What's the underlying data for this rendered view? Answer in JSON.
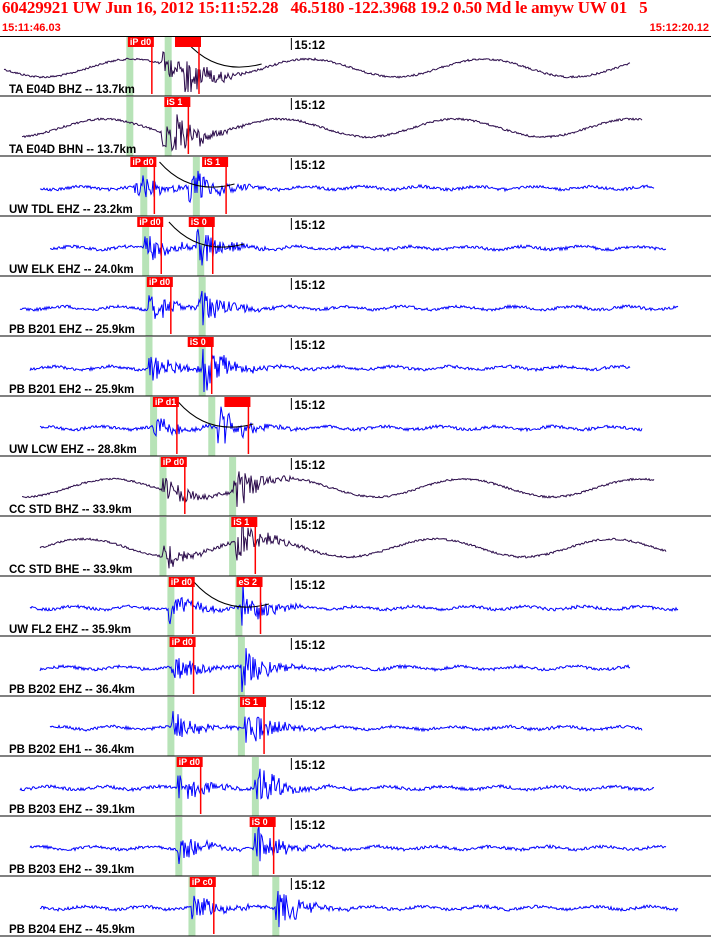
{
  "header": {
    "title": "60429921 UW Jun 16, 2012 15:11:52.28   46.5180 -122.3968 19.2 0.50 Md le amyw UW 01   5",
    "start_time": "15:11:46.03",
    "end_time": "15:12:20.12"
  },
  "minute_label": "15:12",
  "colors": {
    "header": "#ff0000",
    "trace_blue": "#0000ff",
    "trace_dark": "#2a0a4a",
    "pick": "#ff0000",
    "window": "#b7e3b7",
    "curve": "#000000"
  },
  "traces": [
    {
      "label": "TA E04D BHZ -- 13.7km",
      "color": "dark",
      "picks": [
        {
          "text": "iP d0",
          "t": 6.13
        },
        {
          "text": "",
          "t": 8.39
        }
      ],
      "windows": [
        6.2,
        8.04
      ],
      "p_onset": 7.75,
      "s_onset": 8.8,
      "curve": true
    },
    {
      "label": "TA E04D BHN -- 13.7km",
      "color": "dark",
      "picks": [
        {
          "text": "iS 1",
          "t": 7.88
        }
      ],
      "windows": [
        6.2,
        8.04
      ],
      "p_onset": 7.75,
      "s_onset": 8.2,
      "curve": false
    },
    {
      "label": "UW TDL EHZ -- 23.2km",
      "color": "blue",
      "picks": [
        {
          "text": "iP d0",
          "t": 6.25
        },
        {
          "text": "iS 1",
          "t": 9.69
        }
      ],
      "windows": [
        6.87,
        9.39
      ],
      "p_onset": 6.45,
      "s_onset": 9.0,
      "curve": true
    },
    {
      "label": "UW ELK EHZ -- 24.0km",
      "color": "blue",
      "picks": [
        {
          "text": "iP d0",
          "t": 6.58
        },
        {
          "text": "iS 0",
          "t": 9.05
        }
      ],
      "windows": [
        6.96,
        9.6
      ],
      "p_onset": 6.9,
      "s_onset": 9.4,
      "curve": true
    },
    {
      "label": "PB B201 EHZ -- 25.9km",
      "color": "blue",
      "picks": [
        {
          "text": "iP d0",
          "t": 7.04
        }
      ],
      "windows": [
        7.12,
        9.67
      ],
      "p_onset": 7.1,
      "s_onset": 9.5,
      "curve": false
    },
    {
      "label": "PB B201 EH2 -- 25.9km",
      "color": "blue",
      "picks": [
        {
          "text": "iS 0",
          "t": 9.0
        }
      ],
      "windows": [
        7.12,
        9.67
      ],
      "p_onset": 7.1,
      "s_onset": 9.7,
      "curve": false
    },
    {
      "label": "UW LCW EHZ -- 28.8km",
      "color": "blue",
      "picks": [
        {
          "text": "iP d1",
          "t": 7.33
        },
        {
          "text": "",
          "t": 10.76
        }
      ],
      "windows": [
        7.34,
        10.13
      ],
      "p_onset": 7.35,
      "s_onset": 10.4,
      "curve": true
    },
    {
      "label": "CC STD BHZ -- 33.9km",
      "color": "dark",
      "picks": [
        {
          "text": "iP d0",
          "t": 7.71
        }
      ],
      "windows": [
        7.79,
        11.13
      ],
      "p_onset": 7.8,
      "s_onset": 11.2,
      "curve": false
    },
    {
      "label": "CC STD BHE -- 33.9km",
      "color": "dark",
      "picks": [
        {
          "text": "iS 1",
          "t": 11.09
        }
      ],
      "windows": [
        7.79,
        11.13
      ],
      "p_onset": 7.8,
      "s_onset": 11.3,
      "curve": false
    },
    {
      "label": "UW FL2 EHZ -- 35.9km",
      "color": "blue",
      "picks": [
        {
          "text": "iP d0",
          "t": 8.09
        },
        {
          "text": "eS 2",
          "t": 11.34
        }
      ],
      "windows": [
        8.17,
        11.43
      ],
      "p_onset": 8.1,
      "s_onset": 11.6,
      "curve": true
    },
    {
      "label": "PB B202 EHZ -- 36.4km",
      "color": "blue",
      "picks": [
        {
          "text": "iP d0",
          "t": 8.13
        }
      ],
      "windows": [
        8.17,
        11.55
      ],
      "p_onset": 8.2,
      "s_onset": 11.6,
      "curve": false
    },
    {
      "label": "PB B202 EH1 -- 36.4km",
      "color": "blue",
      "picks": [
        {
          "text": "iS 1",
          "t": 11.51
        }
      ],
      "windows": [
        8.17,
        11.55
      ],
      "p_onset": 8.2,
      "s_onset": 11.7,
      "curve": false
    },
    {
      "label": "PB B203 EHZ -- 39.1km",
      "color": "blue",
      "picks": [
        {
          "text": "iP d0",
          "t": 8.47
        }
      ],
      "windows": [
        8.55,
        12.22
      ],
      "p_onset": 8.5,
      "s_onset": 12.2,
      "curve": false
    },
    {
      "label": "PB B203 EH2 -- 39.1km",
      "color": "blue",
      "picks": [
        {
          "text": "iS 0",
          "t": 11.97
        }
      ],
      "windows": [
        8.55,
        12.22
      ],
      "p_onset": 8.5,
      "s_onset": 12.2,
      "curve": false
    },
    {
      "label": "PB B204 EHZ -- 45.9km",
      "color": "blue",
      "picks": [
        {
          "text": "iP c0",
          "t": 9.1
        }
      ],
      "windows": [
        9.18,
        13.2
      ],
      "p_onset": 9.2,
      "s_onset": 13.2,
      "curve": false
    }
  ]
}
